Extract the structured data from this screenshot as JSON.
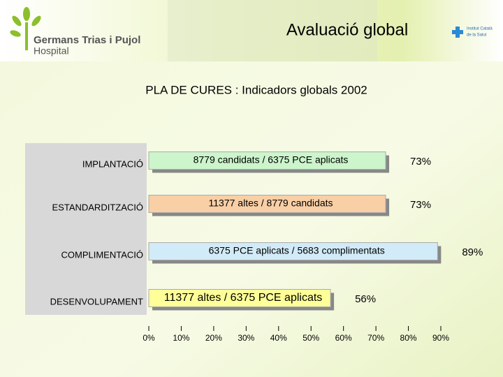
{
  "header": {
    "title": "Avaluació global",
    "logo_left": [
      "Germans Trias i Pujol",
      "Hospital"
    ],
    "logo_right": [
      "Institut Català",
      "de la Salut"
    ]
  },
  "chart_data": {
    "type": "bar",
    "orientation": "horizontal",
    "title": "PLA DE CURES : Indicadors globals 2002",
    "categories": [
      "IMPLANTACIÓ",
      "ESTANDARDITZACIÓ",
      "COMPLIMENTACIÓ",
      "DESENVOLUPAMENT"
    ],
    "bar_labels": [
      "8779 candidats / 6375 PCE aplicats",
      "11377 altes / 8779 candidats",
      "6375 PCE aplicats / 5683 complimentats",
      "11377 altes / 6375 PCE aplicats"
    ],
    "values": [
      73,
      73,
      89,
      56
    ],
    "value_labels": [
      "73%",
      "73%",
      "89%",
      "56%"
    ],
    "colors": [
      "#ccf5cc",
      "#f9cfa6",
      "#d2ebf8",
      "#ffff99"
    ],
    "xlim": [
      0,
      90
    ],
    "xticks": [
      {
        "value": 0,
        "label": "0%"
      },
      {
        "value": 10,
        "label": "10%"
      },
      {
        "value": 20,
        "label": "20%"
      },
      {
        "value": 30,
        "label": "30%"
      },
      {
        "value": 40,
        "label": "40%"
      },
      {
        "value": 50,
        "label": "50%"
      },
      {
        "value": 60,
        "label": "60%"
      },
      {
        "value": 70,
        "label": "70%"
      },
      {
        "value": 80,
        "label": "80%"
      },
      {
        "value": 90,
        "label": "90%"
      }
    ]
  }
}
